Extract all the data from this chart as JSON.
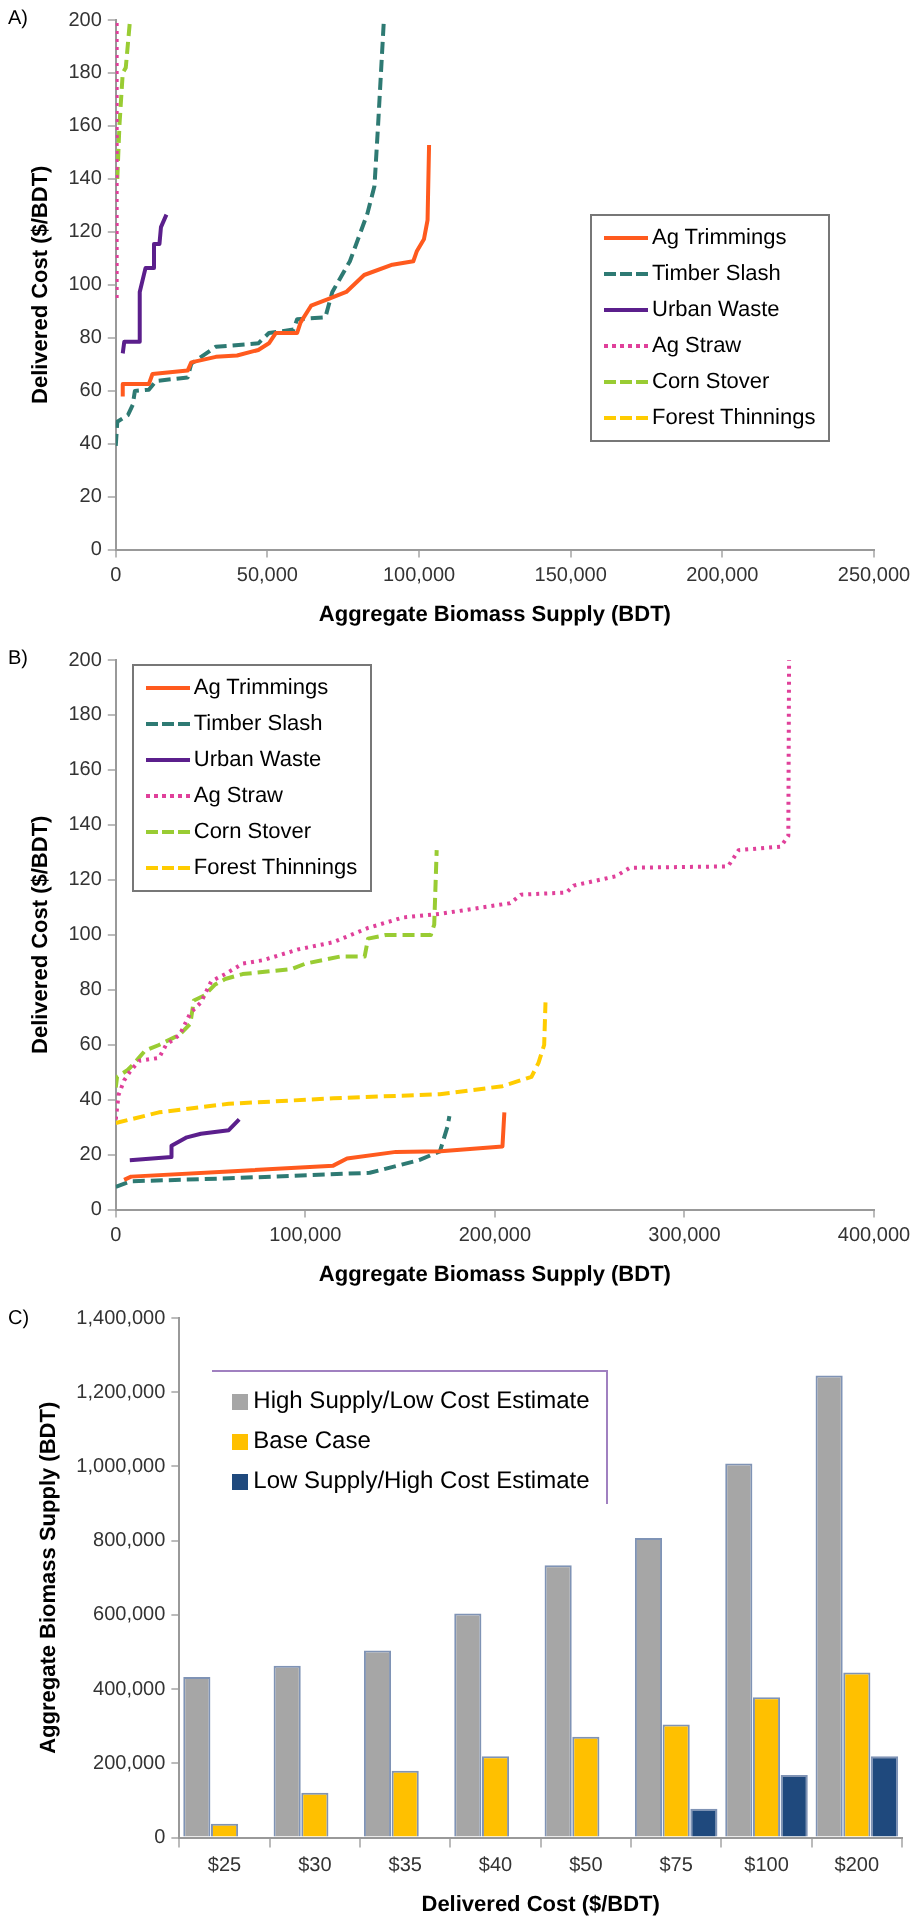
{
  "chart_data": [
    {
      "type": "line",
      "annotations": [
        "A)"
      ],
      "xlabel": "Aggregate Biomass Supply (BDT)",
      "ylabel": "Delivered Cost ($/BDT)",
      "xlim": [
        0,
        250000
      ],
      "xticks": [
        0,
        {
          "value": 50000,
          "label": "50,000"
        },
        {
          "value": 100000,
          "label": "100,000"
        },
        {
          "value": 150000,
          "label": "150,000"
        },
        {
          "value": 200000,
          "label": "200,000"
        },
        {
          "value": 250000,
          "label": "250,000"
        }
      ],
      "ylim": [
        0,
        200
      ],
      "yticks": [
        0,
        20,
        40,
        60,
        80,
        100,
        120,
        140,
        160,
        180,
        200
      ],
      "legend": "right",
      "marker": "none",
      "series": [
        {
          "name": "Ag Trimmings",
          "color": "#ff5a1e",
          "line_style": "solid",
          "x": [
            2300,
            2300,
            10900,
            12100,
            23700,
            24900,
            33000,
            40000,
            47000,
            50500,
            52800,
            59800,
            60900,
            64400,
            70200,
            76000,
            81900,
            91200,
            98100,
            99300,
            101600,
            102800,
            103300
          ],
          "values": [
            57.8,
            62.5,
            62.5,
            66.3,
            67.6,
            70.7,
            72.8,
            73.3,
            75.4,
            77.9,
            81.8,
            81.8,
            85.7,
            92.1,
            94.7,
            97.3,
            103.7,
            107.6,
            108.9,
            112.8,
            117.2,
            124.4,
            152.8
          ]
        },
        {
          "name": "Timber Slash",
          "color": "#2e7a73",
          "line_style": "dashed",
          "x": [
            0,
            500,
            4000,
            5600,
            6300,
            10900,
            13300,
            23700,
            24900,
            33000,
            47000,
            50500,
            58600,
            59800,
            69100,
            71400,
            77200,
            83000,
            85300,
            86500,
            88400
          ],
          "values": [
            39.2,
            48.3,
            50.8,
            54.7,
            59.9,
            60.4,
            63.7,
            65,
            70.2,
            76.6,
            77.9,
            81.8,
            83.1,
            87,
            87.7,
            97.3,
            108.9,
            127,
            137.3,
            160.5,
            200
          ]
        },
        {
          "name": "Urban Waste",
          "color": "#5b1f8c",
          "line_style": "solid",
          "x": [
            2300,
            2800,
            7400,
            7900,
            9800,
            12100,
            12600,
            14400,
            14900,
            16700
          ],
          "values": [
            74.1,
            78.5,
            78.5,
            97.3,
            106.3,
            106.3,
            115.4,
            115.4,
            121.8,
            126.5
          ]
        },
        {
          "name": "Ag Straw",
          "color": "#e0409a",
          "line_style": "dotted",
          "x": [
            300,
            300
          ],
          "values": [
            95,
            200
          ]
        },
        {
          "name": "Corn Stover",
          "color": "#99cc33",
          "line_style": "dashed",
          "x": [
            500,
            1200,
            2300,
            3300,
            4700
          ],
          "values": [
            140,
            160,
            180,
            182,
            200
          ]
        },
        {
          "name": "Forest Thinnings",
          "color": "#ffcc00",
          "line_style": "dashed"
        }
      ]
    },
    {
      "type": "line",
      "annotations": [
        "B)"
      ],
      "xlabel": "Aggregate Biomass Supply (BDT)",
      "ylabel": "Delivered Cost ($/BDT)",
      "xlim": [
        0,
        400000
      ],
      "xticks": [
        0,
        {
          "value": 100000,
          "label": "100,000"
        },
        {
          "value": 200000,
          "label": "200,000"
        },
        {
          "value": 300000,
          "label": "300,000"
        },
        {
          "value": 400000,
          "label": "400,000"
        }
      ],
      "ylim": [
        0,
        200
      ],
      "yticks": [
        0,
        20,
        40,
        60,
        80,
        100,
        120,
        140,
        160,
        180,
        200
      ],
      "legend": "top left",
      "marker": "none",
      "series": [
        {
          "name": "Ag Trimmings",
          "color": "#ff5a1e",
          "line_style": "solid",
          "x": [
            4400,
            8100,
            59600,
            114700,
            122000,
            147800,
            171400,
            204000,
            205000
          ],
          "values": [
            10.8,
            12,
            13.9,
            16,
            18.6,
            21,
            21.2,
            23,
            35.4
          ]
        },
        {
          "name": "Timber Slash",
          "color": "#2e7a73",
          "line_style": "dashed",
          "x": [
            0,
            8000,
            60000,
            134000,
            160000,
            171000,
            175000,
            176000
          ],
          "values": [
            8.3,
            10.3,
            11.4,
            13.4,
            18,
            21.2,
            30.2,
            34
          ]
        },
        {
          "name": "Urban Waste",
          "color": "#5b1f8c",
          "line_style": "solid",
          "x": [
            7400,
            29400,
            29400,
            37500,
            44900,
            59600,
            65100
          ],
          "values": [
            18,
            19.1,
            23.2,
            26.3,
            27.6,
            28.9,
            32.8
          ]
        },
        {
          "name": "Ag Straw",
          "color": "#e0409a",
          "line_style": "dotted",
          "x": [
            0,
            1500,
            4400,
            8100,
            12500,
            22800,
            26500,
            33800,
            39300,
            44900,
            50400,
            57700,
            66900,
            77900,
            96300,
            114700,
            133100,
            151500,
            171000,
            208000,
            213800,
            237800,
            241500,
            263800,
            271200,
            323000,
            328600,
            350800,
            354800,
            355200
          ],
          "values": [
            32.8,
            41.8,
            47,
            50.8,
            54.2,
            55.2,
            59.9,
            63.7,
            71.5,
            75.4,
            83.1,
            85.7,
            89.5,
            90.8,
            94.7,
            97.3,
            102.5,
            106.3,
            107.6,
            111.5,
            114.6,
            115.4,
            117.9,
            121.3,
            124.4,
            124.9,
            130.8,
            132.1,
            136,
            200
          ]
        },
        {
          "name": "Corn Stover",
          "color": "#99cc33",
          "line_style": "dashed",
          "x": [
            0,
            700,
            6300,
            9900,
            15400,
            22800,
            33800,
            39300,
            41200,
            46700,
            52200,
            57700,
            66900,
            92600,
            100000,
            118400,
            131300,
            133100,
            142300,
            166200,
            168000,
            169300
          ],
          "values": [
            44.4,
            48.3,
            50.8,
            53.4,
            57.8,
            59.9,
            63.7,
            67.6,
            76.1,
            77.9,
            81.8,
            83.9,
            85.7,
            87.5,
            89.5,
            92.1,
            92.1,
            98.6,
            99.9,
            99.9,
            103.7,
            130.8
          ]
        },
        {
          "name": "Forest Thinnings",
          "color": "#ffcc00",
          "line_style": "dashed",
          "x": [
            0,
            22800,
            59600,
            114700,
            171000,
            204000,
            219300,
            223000,
            226000,
            226700
          ],
          "values": [
            31.5,
            35.4,
            38.5,
            40.5,
            42,
            44.9,
            48.3,
            53.4,
            59.9,
            75.4
          ]
        }
      ]
    },
    {
      "type": "bar",
      "annotations": [
        "C)"
      ],
      "xlabel": "Delivered Cost ($/BDT)",
      "ylabel": "Aggregate Biomass Supply (BDT)",
      "categories": [
        "$25",
        "$30",
        "$35",
        "$40",
        "$50",
        "$75",
        "$100",
        "$200"
      ],
      "ylim": [
        0,
        1400000
      ],
      "yticks": [
        0,
        {
          "value": 200000,
          "label": "200,000"
        },
        {
          "value": 400000,
          "label": "400,000"
        },
        {
          "value": 600000,
          "label": "600,000"
        },
        {
          "value": 800000,
          "label": "800,000"
        },
        {
          "value": 1000000,
          "label": "1,000,000"
        },
        {
          "value": 1200000,
          "label": "1,200,000"
        },
        {
          "value": 1400000,
          "label": "1,400,000"
        }
      ],
      "legend": "top",
      "series": [
        {
          "name": "High Supply/Low Cost Estimate",
          "color": "#a6a6a6",
          "values": [
            433000,
            463000,
            504000,
            604000,
            734000,
            807000,
            1008000,
            1245000
          ]
        },
        {
          "name": "Base Case",
          "color": "#ffc000",
          "values": [
            37000,
            121000,
            180000,
            219000,
            272000,
            305000,
            378000,
            445000
          ]
        },
        {
          "name": "Low Supply/High Cost Estimate",
          "color": "#1f497d",
          "values": [
            0,
            0,
            0,
            null,
            null,
            78000,
            169000,
            219000
          ]
        }
      ]
    }
  ]
}
